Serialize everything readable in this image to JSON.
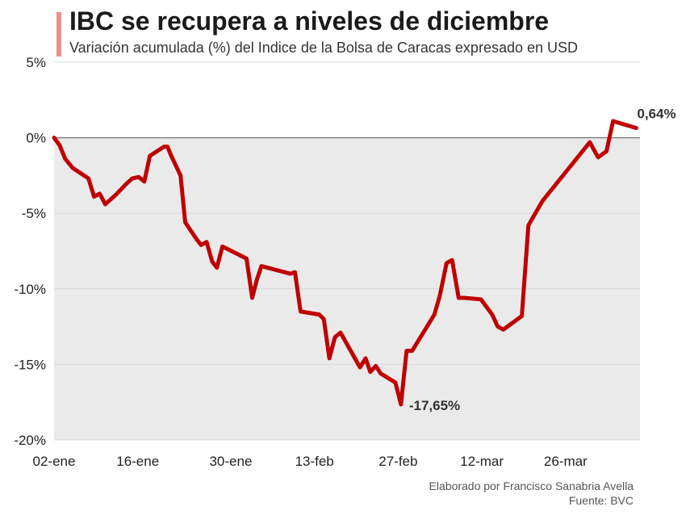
{
  "header": {
    "title": "IBC se recupera a niveles de diciembre",
    "subtitle": "Variación acumulada (%) del Indice de la Bolsa de Caracas expresado en USD",
    "accent_color": "#e8928e"
  },
  "footer": {
    "author": "Elaborado por Francisco Sanabria Avella",
    "source": "Fuente: BVC"
  },
  "chart_data": {
    "type": "line",
    "title": "IBC se recupera a niveles de diciembre",
    "subtitle": "Variación acumulada (%) del Indice de la Bolsa de Caracas expresado en USD",
    "xlabel": "",
    "ylabel": "",
    "ylim": [
      -20,
      5
    ],
    "yticks": [
      5,
      0,
      -5,
      -10,
      -15,
      -20
    ],
    "ytick_labels": [
      "5%",
      "0%",
      "-5%",
      "-10%",
      "-15%",
      "-20%"
    ],
    "xtick_labels": [
      "02-ene",
      "16-ene",
      "30-ene",
      "13-feb",
      "27-feb",
      "12-mar",
      "26-mar"
    ],
    "x_unit": "trading session index (0 = 02-ene)",
    "xlim": [
      0,
      63
    ],
    "xticks": [
      0,
      9,
      19,
      28,
      37,
      46,
      55
    ],
    "grid": true,
    "zero_line": true,
    "line_color": "#c00000",
    "plot_background": "#eaeaea",
    "series": [
      {
        "values": [
          [
            0,
            0
          ],
          [
            0.6,
            -0.5
          ],
          [
            1.2,
            -1.4
          ],
          [
            2,
            -2.0
          ],
          [
            3.7,
            -2.7
          ],
          [
            4.3,
            -3.9
          ],
          [
            4.9,
            -3.7
          ],
          [
            5.5,
            -4.4
          ],
          [
            6.6,
            -3.8
          ],
          [
            7.7,
            -3.1
          ],
          [
            8.4,
            -2.7
          ],
          [
            9.1,
            -2.6
          ],
          [
            9.7,
            -2.9
          ],
          [
            10.3,
            -1.2
          ],
          [
            11.8,
            -0.6
          ],
          [
            12.2,
            -0.6
          ],
          [
            12.6,
            -1.2
          ],
          [
            13.6,
            -2.5
          ],
          [
            14.1,
            -5.6
          ],
          [
            15.3,
            -6.7
          ],
          [
            15.8,
            -7.1
          ],
          [
            16.4,
            -6.9
          ],
          [
            17.0,
            -8.2
          ],
          [
            17.5,
            -8.6
          ],
          [
            18.1,
            -7.2
          ],
          [
            20.7,
            -8.0
          ],
          [
            21.3,
            -10.6
          ],
          [
            21.8,
            -9.4
          ],
          [
            22.3,
            -8.5
          ],
          [
            25.4,
            -9.0
          ],
          [
            25.9,
            -8.9
          ],
          [
            26.5,
            -11.5
          ],
          [
            28.5,
            -11.7
          ],
          [
            29.0,
            -12.0
          ],
          [
            29.6,
            -14.6
          ],
          [
            30.2,
            -13.2
          ],
          [
            30.8,
            -12.9
          ],
          [
            32.9,
            -15.2
          ],
          [
            33.5,
            -14.6
          ],
          [
            34.0,
            -15.5
          ],
          [
            34.6,
            -15.1
          ],
          [
            35.1,
            -15.6
          ],
          [
            36.7,
            -16.2
          ],
          [
            37.3,
            -17.65
          ],
          [
            37.9,
            -14.1
          ],
          [
            38.5,
            -14.1
          ],
          [
            40.9,
            -11.7
          ],
          [
            41.5,
            -10.4
          ],
          [
            42.2,
            -8.3
          ],
          [
            42.8,
            -8.1
          ],
          [
            43.5,
            -10.6
          ],
          [
            44.1,
            -10.6
          ],
          [
            45.9,
            -10.7
          ],
          [
            47.1,
            -11.7
          ],
          [
            47.7,
            -12.5
          ],
          [
            48.3,
            -12.7
          ],
          [
            50.3,
            -11.8
          ],
          [
            51.0,
            -5.8
          ],
          [
            52.5,
            -4.2
          ],
          [
            57.6,
            -0.3
          ],
          [
            58.5,
            -1.3
          ],
          [
            59.4,
            -0.9
          ],
          [
            60.1,
            1.1
          ],
          [
            62.6,
            0.64
          ]
        ]
      }
    ],
    "annotations": [
      {
        "label": "0,64%",
        "x": 62.6,
        "y": 0.64
      },
      {
        "label": "-17,65%",
        "x": 37.3,
        "y": -17.65
      }
    ]
  }
}
